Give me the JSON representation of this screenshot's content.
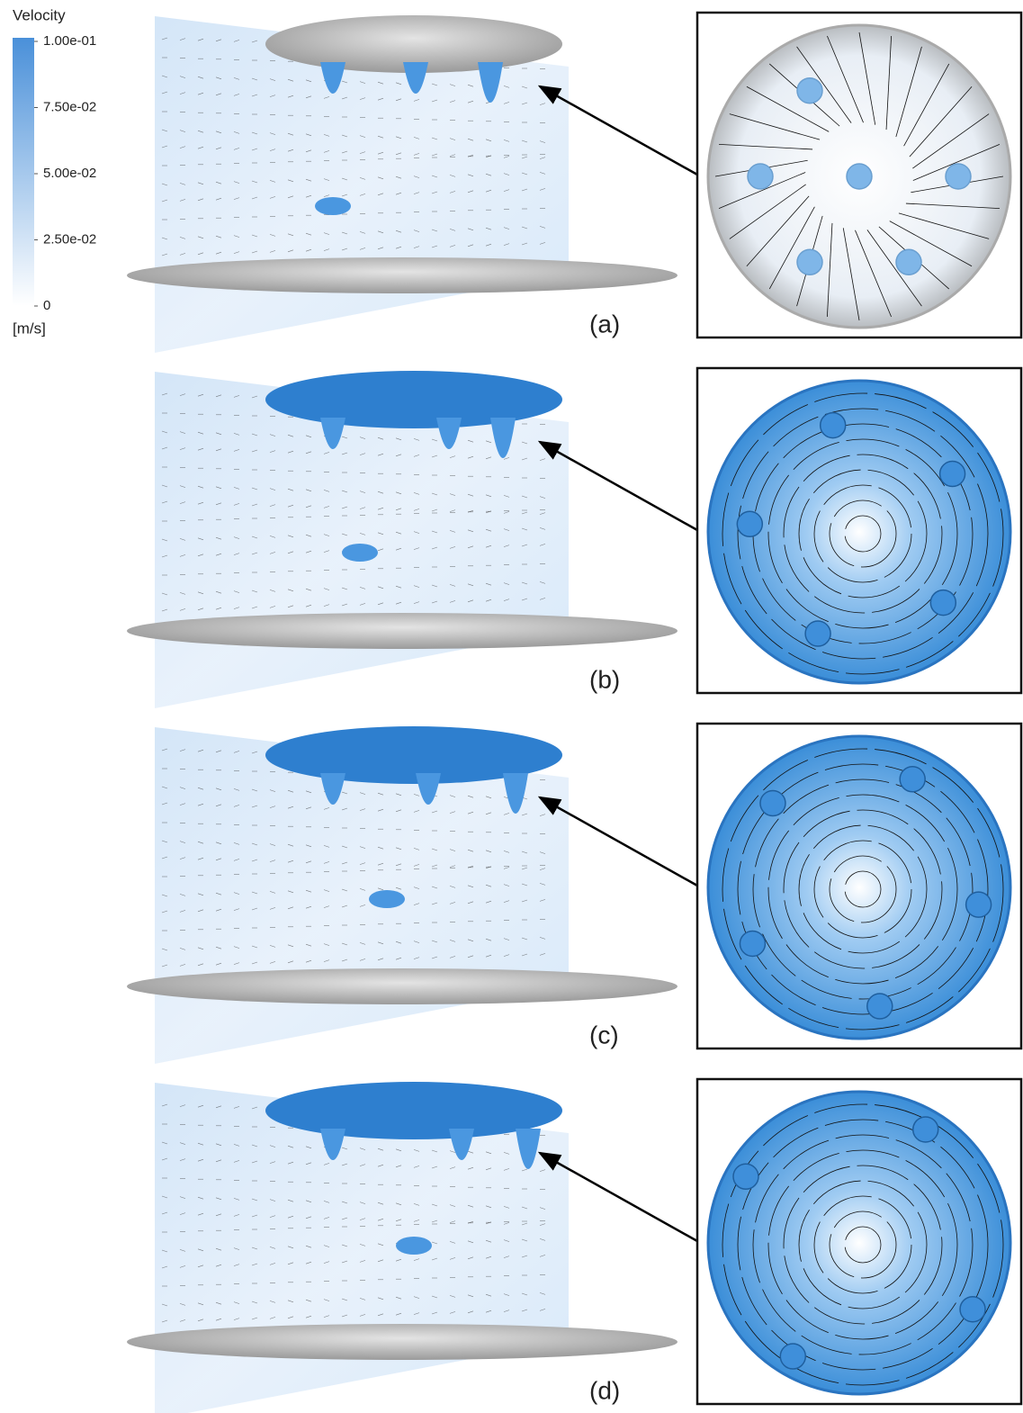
{
  "colorbar": {
    "title": "Velocity",
    "unit": "[m/s]",
    "lim": [
      0,
      0.1
    ],
    "ticks": [
      {
        "value": 0.1,
        "label": "1.00e-01"
      },
      {
        "value": 0.075,
        "label": "7.50e-02"
      },
      {
        "value": 0.05,
        "label": "5.00e-02"
      },
      {
        "value": 0.025,
        "label": "2.50e-02"
      },
      0
    ]
  },
  "panels": [
    {
      "label": "(a)"
    },
    {
      "label": "(b)"
    },
    {
      "label": "(c)"
    },
    {
      "label": "(d)"
    }
  ]
}
